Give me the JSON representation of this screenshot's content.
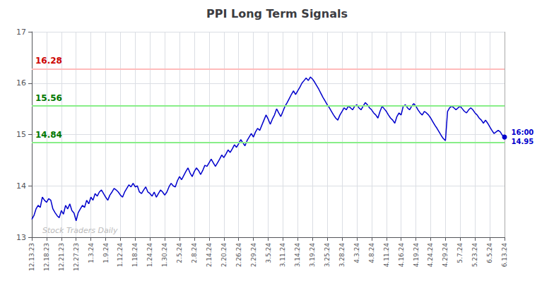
{
  "chart_data": {
    "type": "line",
    "title": "PPI Long Term Signals",
    "color": "#0000cc",
    "grid": true,
    "ylim": [
      13,
      17
    ],
    "yticks": [
      13,
      14,
      15,
      16,
      17
    ],
    "categories": [
      "12.13.23",
      null,
      null,
      null,
      null,
      null,
      null,
      "12.18.23",
      null,
      null,
      null,
      null,
      null,
      null,
      "12.21.23",
      null,
      null,
      null,
      null,
      null,
      null,
      "12.27.23",
      null,
      null,
      null,
      null,
      null,
      null,
      "1.3.24",
      null,
      null,
      null,
      null,
      null,
      null,
      "1.9.24",
      null,
      null,
      null,
      null,
      null,
      null,
      "1.12.24",
      null,
      null,
      null,
      null,
      null,
      null,
      "1.18.24",
      null,
      null,
      null,
      null,
      null,
      null,
      "1.24.24",
      null,
      null,
      null,
      null,
      null,
      null,
      "1.30.24",
      null,
      null,
      null,
      null,
      null,
      null,
      "2.5.24",
      null,
      null,
      null,
      null,
      null,
      null,
      "2.8.24",
      null,
      null,
      null,
      null,
      null,
      null,
      "2.14.24",
      null,
      null,
      null,
      null,
      null,
      null,
      "2.20.24",
      null,
      null,
      null,
      null,
      null,
      null,
      "2.26.24",
      null,
      null,
      null,
      null,
      null,
      null,
      "2.29.24",
      null,
      null,
      null,
      null,
      null,
      null,
      "3.5.24",
      null,
      null,
      null,
      null,
      null,
      null,
      "3.11.24",
      null,
      null,
      null,
      null,
      null,
      null,
      "3.14.24",
      null,
      null,
      null,
      null,
      null,
      null,
      "3.19.24",
      null,
      null,
      null,
      null,
      null,
      null,
      "3.25.24",
      null,
      null,
      null,
      null,
      null,
      null,
      "3.28.24",
      null,
      null,
      null,
      null,
      null,
      null,
      "4.3.24",
      null,
      null,
      null,
      null,
      null,
      null,
      "4.8.24",
      null,
      null,
      null,
      null,
      null,
      null,
      "4.11.24",
      null,
      null,
      null,
      null,
      null,
      null,
      "4.16.24",
      null,
      null,
      null,
      null,
      null,
      null,
      "4.19.24",
      null,
      null,
      null,
      null,
      null,
      null,
      "4.24.24",
      null,
      null,
      null,
      null,
      null,
      null,
      "4.29.24",
      null,
      null,
      null,
      null,
      null,
      null,
      "5.7.24",
      null,
      null,
      null,
      null,
      null,
      null,
      "5.23.24",
      null,
      null,
      null,
      null,
      null,
      null,
      "6.5.24",
      null,
      null,
      null,
      null,
      null,
      null,
      "6.13.24"
    ],
    "values": [
      13.35,
      13.42,
      13.55,
      13.62,
      13.58,
      13.78,
      13.72,
      13.68,
      13.75,
      13.72,
      13.55,
      13.48,
      13.42,
      13.38,
      13.52,
      13.45,
      13.62,
      13.55,
      13.65,
      13.52,
      13.47,
      13.32,
      13.48,
      13.55,
      13.62,
      13.58,
      13.72,
      13.65,
      13.78,
      13.72,
      13.85,
      13.8,
      13.88,
      13.92,
      13.85,
      13.78,
      13.72,
      13.82,
      13.88,
      13.95,
      13.92,
      13.88,
      13.82,
      13.78,
      13.88,
      13.95,
      14.02,
      13.98,
      14.05,
      13.98,
      14.0,
      13.88,
      13.85,
      13.92,
      13.98,
      13.88,
      13.85,
      13.8,
      13.88,
      13.78,
      13.85,
      13.92,
      13.88,
      13.82,
      13.88,
      13.98,
      14.05,
      14.0,
      13.98,
      14.1,
      14.18,
      14.12,
      14.2,
      14.28,
      14.35,
      14.25,
      14.18,
      14.28,
      14.35,
      14.3,
      14.22,
      14.3,
      14.4,
      14.38,
      14.45,
      14.52,
      14.45,
      14.38,
      14.45,
      14.52,
      14.6,
      14.55,
      14.62,
      14.7,
      14.65,
      14.72,
      14.8,
      14.75,
      14.82,
      14.9,
      14.84,
      14.78,
      14.88,
      14.95,
      15.02,
      14.95,
      15.05,
      15.12,
      15.08,
      15.18,
      15.28,
      15.38,
      15.3,
      15.2,
      15.3,
      15.38,
      15.5,
      15.42,
      15.35,
      15.45,
      15.55,
      15.62,
      15.7,
      15.78,
      15.85,
      15.78,
      15.85,
      15.92,
      16.0,
      16.05,
      16.1,
      16.05,
      16.12,
      16.08,
      16.02,
      15.95,
      15.88,
      15.8,
      15.72,
      15.65,
      15.58,
      15.52,
      15.45,
      15.38,
      15.32,
      15.28,
      15.38,
      15.45,
      15.52,
      15.48,
      15.55,
      15.52,
      15.48,
      15.55,
      15.58,
      15.52,
      15.48,
      15.55,
      15.62,
      15.58,
      15.52,
      15.48,
      15.42,
      15.38,
      15.32,
      15.45,
      15.55,
      15.5,
      15.45,
      15.38,
      15.32,
      15.28,
      15.22,
      15.35,
      15.42,
      15.38,
      15.55,
      15.58,
      15.52,
      15.48,
      15.55,
      15.6,
      15.55,
      15.48,
      15.42,
      15.38,
      15.45,
      15.42,
      15.38,
      15.32,
      15.25,
      15.18,
      15.12,
      15.05,
      14.98,
      14.92,
      14.88,
      15.45,
      15.52,
      15.55,
      15.52,
      15.48,
      15.52,
      15.55,
      15.5,
      15.45,
      15.42,
      15.48,
      15.52,
      15.48,
      15.42,
      15.38,
      15.32,
      15.28,
      15.22,
      15.28,
      15.22,
      15.15,
      15.08,
      15.02,
      15.05,
      15.08,
      15.05,
      14.98,
      14.95
    ],
    "hlines": [
      {
        "y": 16.28,
        "color": "#ffbbbb",
        "label": "16.28",
        "label_color": "#cc0000"
      },
      {
        "y": 15.56,
        "color": "#88ee88",
        "label": "15.56",
        "label_color": "#007700"
      },
      {
        "y": 14.84,
        "color": "#88ee88",
        "label": "14.84",
        "label_color": "#007700"
      }
    ],
    "last_point_label": {
      "text": "16:00\n14.95",
      "color": "#0000cc"
    },
    "watermark": {
      "text": "Stock Traders Daily",
      "color": "#bbbbbb"
    }
  }
}
